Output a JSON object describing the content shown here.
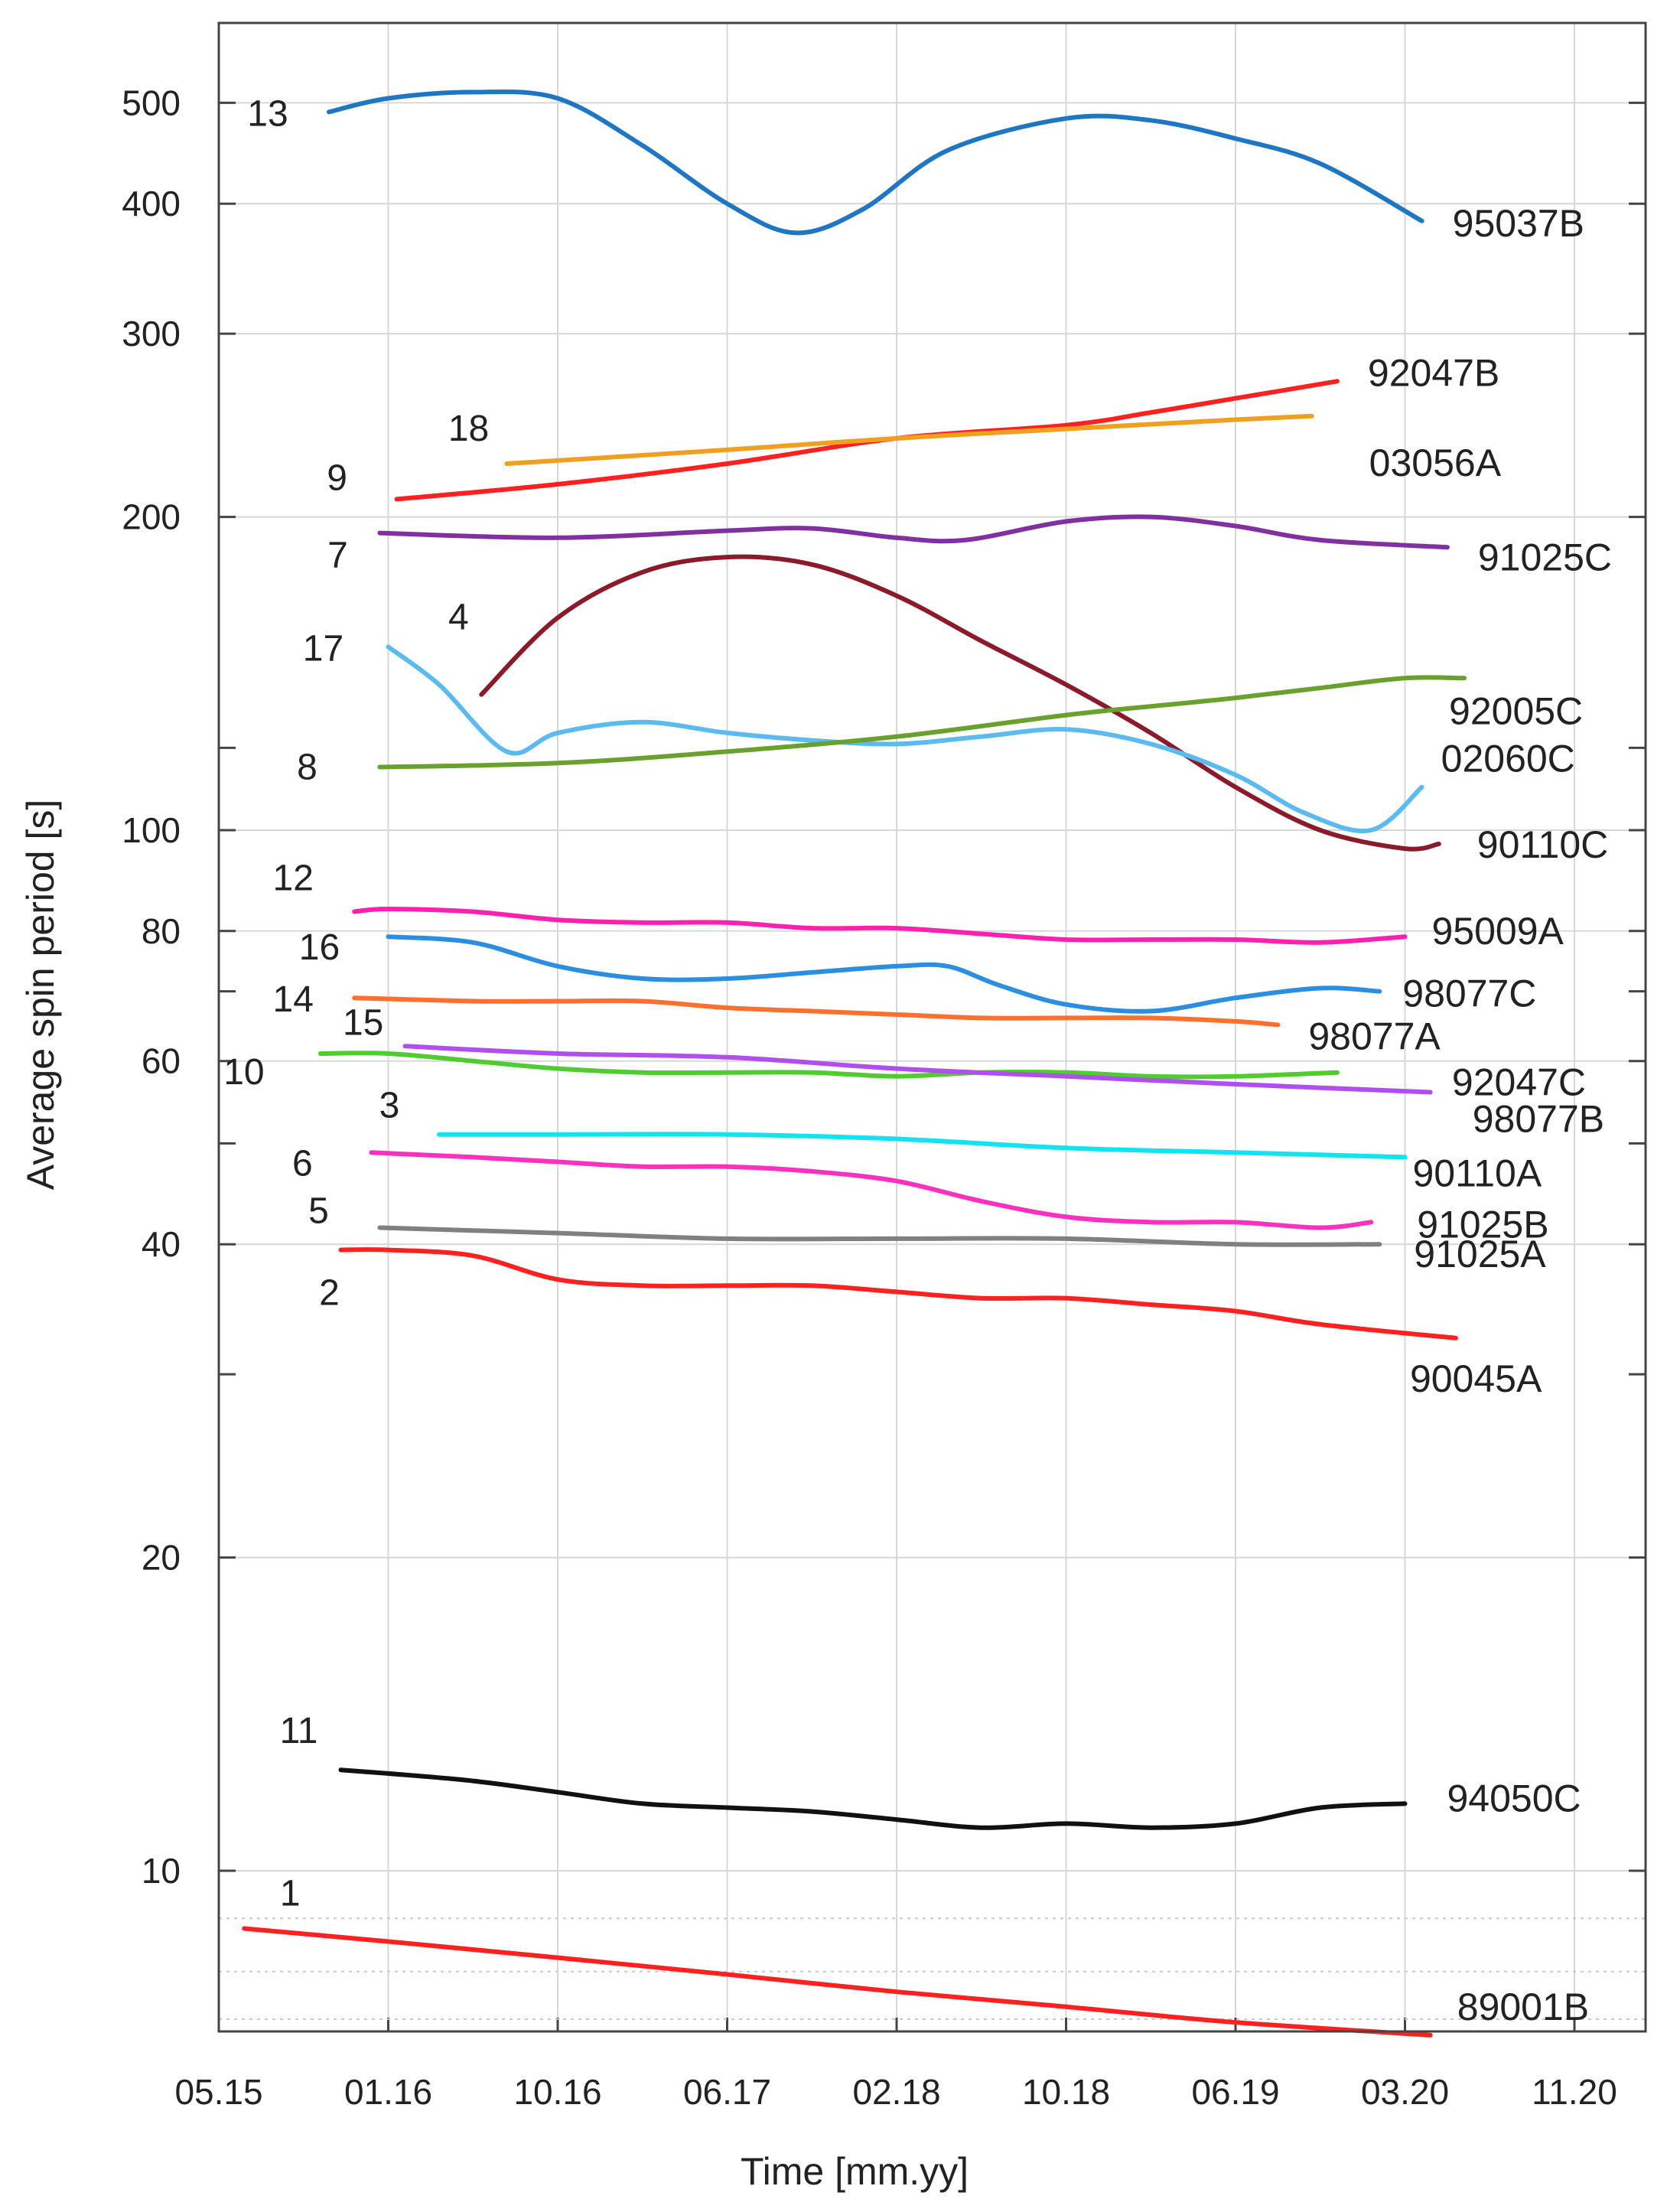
{
  "chart_data": {
    "type": "line",
    "title": "",
    "xlabel": "Time [mm.yy]",
    "ylabel": "Average spin period [s]",
    "yscale": "log",
    "ylim": [
      5.8,
      620
    ],
    "xlim": [
      0,
      8.33
    ],
    "x_ticks": [
      {
        "pos": 0,
        "label": "05.15"
      },
      {
        "pos": 1,
        "label": "01.16"
      },
      {
        "pos": 2,
        "label": "10.16"
      },
      {
        "pos": 3,
        "label": "06.17"
      },
      {
        "pos": 4,
        "label": "02.18"
      },
      {
        "pos": 5,
        "label": "10.18"
      },
      {
        "pos": 6,
        "label": "06.19"
      },
      {
        "pos": 7,
        "label": "03.20"
      },
      {
        "pos": 8,
        "label": "11.20"
      }
    ],
    "y_ticks": [
      {
        "value": 10,
        "label": "10"
      },
      {
        "value": 20,
        "label": "20"
      },
      {
        "value": 40,
        "label": "40"
      },
      {
        "value": 60,
        "label": "60"
      },
      {
        "value": 80,
        "label": "80"
      },
      {
        "value": 100,
        "label": "100"
      },
      {
        "value": 200,
        "label": "200"
      },
      {
        "value": 300,
        "label": "300"
      },
      {
        "value": 400,
        "label": "400"
      },
      {
        "value": 500,
        "label": "500"
      }
    ],
    "y_minor_ticks": [
      30,
      50,
      70,
      120
    ],
    "y_dotted_lines": [
      7.2,
      8.0,
      9.0
    ],
    "grid": true,
    "series": [
      {
        "name": "95037B",
        "number": "13",
        "color": "#1f77c4",
        "x": [
          0.65,
          1.0,
          1.5,
          2.0,
          2.5,
          3.0,
          3.4,
          3.8,
          4.3,
          5.0,
          5.5,
          6.0,
          6.5,
          7.1
        ],
        "y": [
          490,
          505,
          512,
          505,
          455,
          400,
          375,
          395,
          450,
          483,
          481,
          462,
          437,
          385
        ]
      },
      {
        "name": "92047B",
        "number": "9",
        "color": "#ff2020",
        "x": [
          1.05,
          2.0,
          3.0,
          4.0,
          5.0,
          5.5,
          6.0,
          6.6
        ],
        "y": [
          208,
          215,
          225,
          238,
          245,
          252,
          260,
          270
        ]
      },
      {
        "name": "03056A",
        "number": "18",
        "color": "#f0a020",
        "x": [
          1.7,
          3.0,
          4.0,
          5.0,
          6.0,
          6.45
        ],
        "y": [
          225,
          232,
          238,
          243,
          248,
          250
        ]
      },
      {
        "name": "91025C",
        "number": "7",
        "color": "#8030a0",
        "x": [
          0.95,
          2.0,
          3.0,
          3.5,
          4.0,
          4.4,
          5.0,
          5.5,
          6.0,
          6.5,
          7.25
        ],
        "y": [
          193,
          191,
          194,
          195,
          191,
          190,
          198,
          200,
          196,
          190,
          187
        ]
      },
      {
        "name": "90110C",
        "number": "4",
        "color": "#8b1a2b",
        "x": [
          1.55,
          2.0,
          2.5,
          3.0,
          3.5,
          4.0,
          4.5,
          5.0,
          5.5,
          6.0,
          6.5,
          7.0,
          7.2
        ],
        "y": [
          135,
          160,
          177,
          183,
          180,
          168,
          152,
          138,
          124,
          110,
          100,
          96,
          97
        ]
      },
      {
        "name": "02060C",
        "number": "17",
        "color": "#5bbbf0",
        "x": [
          1.0,
          1.3,
          1.7,
          2.0,
          2.5,
          3.0,
          3.5,
          4.0,
          4.5,
          5.0,
          5.5,
          6.0,
          6.4,
          6.8,
          7.1
        ],
        "y": [
          150,
          138,
          119,
          124,
          127,
          124,
          122,
          121,
          123,
          125,
          121,
          113,
          104,
          100,
          110
        ]
      },
      {
        "name": "92005C",
        "number": "8",
        "color": "#6aa02e",
        "x": [
          0.95,
          2.0,
          3.0,
          4.0,
          5.0,
          5.6,
          6.0,
          6.5,
          7.0,
          7.35
        ],
        "y": [
          115,
          116,
          119,
          123,
          129,
          132,
          134,
          137,
          140,
          140
        ]
      },
      {
        "name": "95009A",
        "number": "12",
        "color": "#ff20b0",
        "x": [
          0.8,
          1.0,
          1.5,
          2.0,
          2.5,
          3.0,
          3.5,
          4.0,
          4.5,
          5.0,
          5.5,
          6.0,
          6.5,
          7.0
        ],
        "y": [
          83.5,
          84,
          83.5,
          82,
          81.5,
          81.5,
          80.5,
          80.5,
          79.5,
          78.5,
          78.5,
          78.5,
          78,
          79
        ]
      },
      {
        "name": "98077C",
        "number": "16",
        "color": "#2b8ee0",
        "x": [
          1.0,
          1.5,
          2.0,
          2.5,
          3.0,
          3.5,
          4.0,
          4.3,
          4.6,
          5.0,
          5.5,
          6.0,
          6.5,
          6.85
        ],
        "y": [
          79,
          78,
          74,
          72,
          72,
          73,
          74,
          74,
          71,
          68,
          67,
          69,
          70.5,
          70
        ]
      },
      {
        "name": "98077A",
        "number": "14",
        "color": "#ff7030",
        "x": [
          0.8,
          1.5,
          2.0,
          2.5,
          3.0,
          3.5,
          4.0,
          4.5,
          5.0,
          5.5,
          6.0,
          6.25
        ],
        "y": [
          69,
          68.5,
          68.5,
          68.5,
          67.5,
          67,
          66.5,
          66,
          66,
          66,
          65.5,
          65
        ]
      },
      {
        "name": "92047C",
        "number": "10",
        "color": "#50cc30",
        "x": [
          0.6,
          1.0,
          1.5,
          2.0,
          2.5,
          3.0,
          3.5,
          4.0,
          4.5,
          5.0,
          5.5,
          6.0,
          6.6
        ],
        "y": [
          61,
          61,
          60,
          59,
          58.5,
          58.5,
          58.5,
          58,
          58.5,
          58.5,
          58,
          58,
          58.5
        ]
      },
      {
        "name": "98077B",
        "number": "15",
        "color": "#b04ef0",
        "x": [
          1.1,
          2.0,
          3.0,
          4.0,
          5.0,
          6.0,
          7.15
        ],
        "y": [
          62,
          61,
          60.5,
          59,
          58,
          57,
          56
        ]
      },
      {
        "name": "90110A",
        "number": "3",
        "color": "#10e4f0",
        "x": [
          1.3,
          2.0,
          3.0,
          4.0,
          5.0,
          6.0,
          7.0
        ],
        "y": [
          51,
          51,
          51,
          50.5,
          49.5,
          49,
          48.5
        ]
      },
      {
        "name": "91025B",
        "number": "6",
        "color": "#ff30c0",
        "x": [
          0.9,
          1.5,
          2.0,
          2.5,
          3.0,
          3.5,
          4.0,
          4.5,
          5.0,
          5.5,
          6.0,
          6.5,
          6.8
        ],
        "y": [
          49,
          48.5,
          48,
          47.5,
          47.5,
          47,
          46,
          44,
          42.5,
          42,
          42,
          41.5,
          42
        ]
      },
      {
        "name": "91025A",
        "number": "5",
        "color": "#808080",
        "x": [
          0.95,
          2.0,
          3.0,
          4.0,
          5.0,
          6.0,
          6.85
        ],
        "y": [
          41.5,
          41,
          40.5,
          40.5,
          40.5,
          40,
          40
        ]
      },
      {
        "name": "90045A",
        "number": "2",
        "color": "#ff2020",
        "x": [
          0.72,
          1.0,
          1.5,
          2.0,
          2.5,
          3.0,
          3.5,
          4.0,
          4.5,
          5.0,
          5.5,
          6.0,
          6.5,
          7.3
        ],
        "y": [
          39.5,
          39.5,
          39,
          37,
          36.5,
          36.5,
          36.5,
          36,
          35.5,
          35.5,
          35,
          34.5,
          33.5,
          32.5
        ]
      },
      {
        "name": "94050C",
        "number": "11",
        "color": "#111111",
        "x": [
          0.72,
          1.0,
          1.5,
          2.0,
          2.5,
          3.0,
          3.5,
          4.0,
          4.5,
          5.0,
          5.5,
          6.0,
          6.5,
          7.0
        ],
        "y": [
          12.5,
          12.4,
          12.2,
          11.9,
          11.6,
          11.5,
          11.4,
          11.2,
          11.0,
          11.1,
          11.0,
          11.1,
          11.5,
          11.6
        ]
      },
      {
        "name": "89001B",
        "number": "1",
        "color": "#ff2020",
        "x": [
          0.15,
          1.0,
          2.0,
          3.0,
          4.0,
          5.0,
          6.0,
          7.15
        ],
        "y": [
          8.8,
          8.55,
          8.25,
          7.95,
          7.65,
          7.4,
          7.15,
          6.95
        ]
      }
    ]
  }
}
